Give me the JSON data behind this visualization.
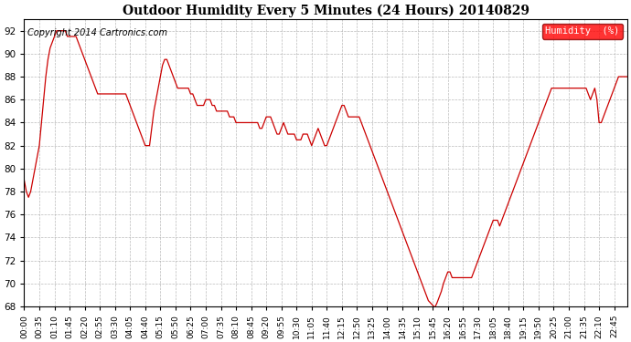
{
  "title": "Outdoor Humidity Every 5 Minutes (24 Hours) 20140829",
  "copyright": "Copyright 2014 Cartronics.com",
  "legend_label": "Humidity  (%)",
  "line_color": "#cc0000",
  "bg_color": "#ffffff",
  "grid_color": "#aaaaaa",
  "ylim": [
    68.0,
    93.0
  ],
  "yticks": [
    68.0,
    70.0,
    72.0,
    74.0,
    76.0,
    78.0,
    82.0,
    84.0,
    86.0,
    88.0,
    90.0,
    92.0
  ],
  "humidity_data": [
    79.0,
    78.0,
    77.5,
    78.0,
    79.0,
    80.0,
    81.0,
    82.0,
    84.0,
    86.0,
    88.0,
    89.5,
    90.5,
    91.0,
    91.5,
    92.0,
    92.0,
    92.0,
    92.0,
    92.0,
    91.5,
    91.5,
    91.5,
    91.5,
    91.5,
    91.0,
    90.5,
    90.0,
    89.5,
    89.0,
    88.5,
    88.0,
    87.5,
    87.0,
    86.5,
    86.5,
    86.5,
    86.5,
    86.5,
    86.5,
    86.5,
    86.5,
    86.5,
    86.5,
    86.5,
    86.5,
    86.5,
    86.5,
    86.0,
    85.5,
    85.0,
    84.5,
    84.0,
    83.5,
    83.0,
    82.5,
    82.0,
    82.0,
    82.0,
    83.5,
    85.0,
    86.0,
    87.0,
    88.0,
    89.0,
    89.5,
    89.5,
    89.0,
    88.5,
    88.0,
    87.5,
    87.0,
    87.0,
    87.0,
    87.0,
    87.0,
    87.0,
    86.5,
    86.5,
    86.0,
    85.5,
    85.5,
    85.5,
    85.5,
    86.0,
    86.0,
    86.0,
    85.5,
    85.5,
    85.0,
    85.0,
    85.0,
    85.0,
    85.0,
    85.0,
    84.5,
    84.5,
    84.5,
    84.0,
    84.0,
    84.0,
    84.0,
    84.0,
    84.0,
    84.0,
    84.0,
    84.0,
    84.0,
    84.0,
    83.5,
    83.5,
    84.0,
    84.5,
    84.5,
    84.5,
    84.0,
    83.5,
    83.0,
    83.0,
    83.5,
    84.0,
    83.5,
    83.0,
    83.0,
    83.0,
    83.0,
    82.5,
    82.5,
    82.5,
    83.0,
    83.0,
    83.0,
    82.5,
    82.0,
    82.5,
    83.0,
    83.5,
    83.0,
    82.5,
    82.0,
    82.0,
    82.5,
    83.0,
    83.5,
    84.0,
    84.5,
    85.0,
    85.5,
    85.5,
    85.0,
    84.5,
    84.5,
    84.5,
    84.5,
    84.5,
    84.5,
    84.0,
    83.5,
    83.0,
    82.5,
    82.0,
    81.5,
    81.0,
    80.5,
    80.0,
    79.5,
    79.0,
    78.5,
    78.0,
    77.5,
    77.0,
    76.5,
    76.0,
    75.5,
    75.0,
    74.5,
    74.0,
    73.5,
    73.0,
    72.5,
    72.0,
    71.5,
    71.0,
    70.5,
    70.0,
    69.5,
    69.0,
    68.5,
    68.3,
    68.1,
    67.9,
    68.3,
    68.8,
    69.3,
    70.0,
    70.5,
    71.0,
    71.0,
    70.5,
    70.5,
    70.5,
    70.5,
    70.5,
    70.5,
    70.5,
    70.5,
    70.5,
    70.5,
    71.0,
    71.5,
    72.0,
    72.5,
    73.0,
    73.5,
    74.0,
    74.5,
    75.0,
    75.5,
    75.5,
    75.5,
    75.0,
    75.5,
    76.0,
    76.5,
    77.0,
    77.5,
    78.0,
    78.5,
    79.0,
    79.5,
    80.0,
    80.5,
    81.0,
    81.5,
    82.0,
    82.5,
    83.0,
    83.5,
    84.0,
    84.5,
    85.0,
    85.5,
    86.0,
    86.5,
    87.0,
    87.0,
    87.0,
    87.0,
    87.0,
    87.0,
    87.0,
    87.0,
    87.0,
    87.0,
    87.0,
    87.0,
    87.0,
    87.0,
    87.0,
    87.0,
    87.0,
    86.5,
    86.0,
    86.5,
    87.0,
    86.0,
    84.0,
    84.0,
    84.5,
    85.0,
    85.5,
    86.0,
    86.5,
    87.0,
    87.5,
    88.0,
    88.0,
    88.0,
    88.0,
    88.0
  ],
  "tick_every_n": 7,
  "figsize": [
    6.9,
    3.75
  ],
  "dpi": 100
}
